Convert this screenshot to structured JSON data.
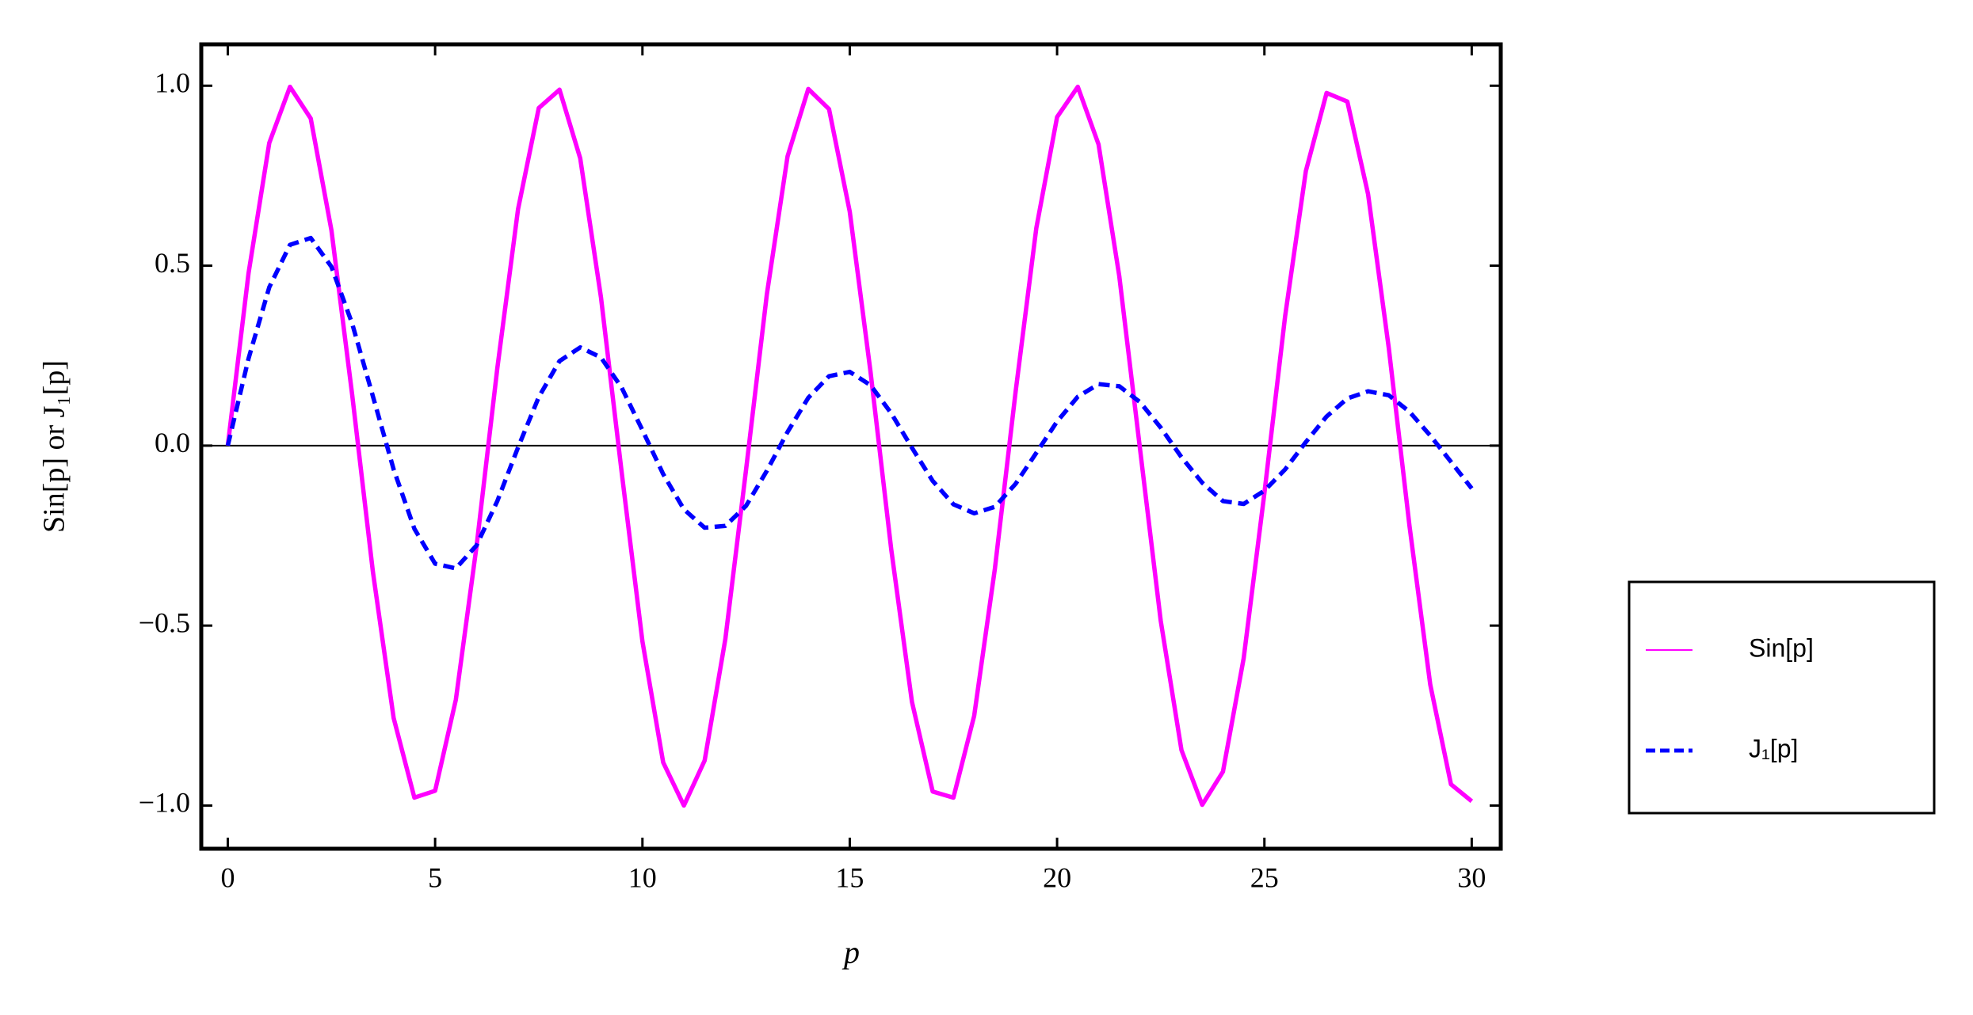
{
  "chart_data": {
    "type": "line",
    "x_label": "p",
    "y_label": "Sin[p] or J₁[p]",
    "x": [
      0,
      0.5,
      1,
      1.5,
      2,
      2.5,
      3,
      3.5,
      4,
      4.5,
      5,
      5.5,
      6,
      6.5,
      7,
      7.5,
      8,
      8.5,
      9,
      9.5,
      10,
      10.5,
      11,
      11.5,
      12,
      12.5,
      13,
      13.5,
      14,
      14.5,
      15,
      15.5,
      16,
      16.5,
      17,
      17.5,
      18,
      18.5,
      19,
      19.5,
      20,
      20.5,
      21,
      21.5,
      22,
      22.5,
      23,
      23.5,
      24,
      24.5,
      25,
      25.5,
      26,
      26.5,
      27,
      27.5,
      28,
      28.5,
      29,
      29.5,
      30
    ],
    "series": [
      {
        "name": "Sin[p]",
        "color": "#ff00ff",
        "dashed": false,
        "values": [
          0,
          0.479,
          0.841,
          0.997,
          0.909,
          0.598,
          0.141,
          -0.351,
          -0.757,
          -0.978,
          -0.959,
          -0.706,
          -0.279,
          0.215,
          0.657,
          0.938,
          0.989,
          0.798,
          0.412,
          -0.075,
          -0.544,
          -0.88,
          -1.0,
          -0.875,
          -0.537,
          -0.066,
          0.42,
          0.804,
          0.991,
          0.935,
          0.65,
          0.206,
          -0.288,
          -0.712,
          -0.961,
          -0.978,
          -0.751,
          -0.342,
          0.15,
          0.605,
          0.913,
          0.997,
          0.837,
          0.471,
          -0.009,
          -0.487,
          -0.846,
          -0.998,
          -0.906,
          -0.591,
          -0.132,
          0.36,
          0.763,
          0.98,
          0.956,
          0.699,
          0.271,
          -0.224,
          -0.664,
          -0.941,
          -0.988
        ]
      },
      {
        "name": "J₁[p]",
        "color": "#0000ff",
        "dashed": true,
        "values": [
          0,
          0.242,
          0.44,
          0.558,
          0.577,
          0.497,
          0.339,
          0.137,
          -0.066,
          -0.231,
          -0.328,
          -0.341,
          -0.277,
          -0.154,
          -0.005,
          0.135,
          0.235,
          0.273,
          0.245,
          0.161,
          0.043,
          -0.079,
          -0.177,
          -0.228,
          -0.223,
          -0.167,
          -0.07,
          0.038,
          0.133,
          0.193,
          0.205,
          0.168,
          0.09,
          -0.006,
          -0.098,
          -0.163,
          -0.188,
          -0.17,
          -0.106,
          -0.02,
          0.067,
          0.136,
          0.171,
          0.165,
          0.121,
          0.05,
          -0.032,
          -0.103,
          -0.154,
          -0.162,
          -0.125,
          -0.066,
          0.01,
          0.081,
          0.131,
          0.151,
          0.14,
          0.094,
          0.028,
          -0.045,
          -0.119
        ]
      }
    ],
    "xlim": [
      -0.64,
      30.7
    ],
    "ylim": [
      -1.12,
      1.115
    ],
    "xticks": [
      0,
      5,
      10,
      15,
      20,
      25,
      30
    ],
    "yticks": [
      {
        "value": -1.0,
        "label": "−1.0"
      },
      {
        "value": -0.5,
        "label": "−0.5"
      },
      {
        "value": 0.0,
        "label": "0.0"
      },
      0.5,
      {
        "value": 1.0,
        "label": "1.0"
      }
    ],
    "zero_line": true,
    "grid": false,
    "legend": "right"
  }
}
